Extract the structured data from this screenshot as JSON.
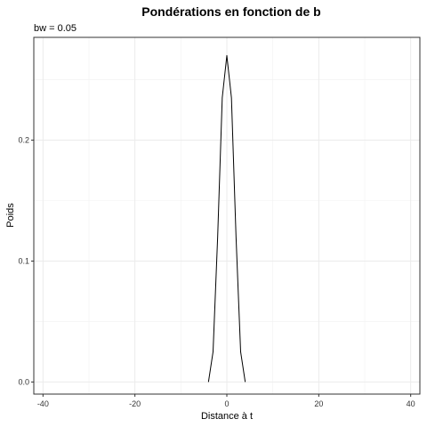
{
  "chart_data": {
    "type": "line",
    "title": "Pondérations en fonction de b",
    "subtitle": "bw = 0.05",
    "xlabel": "Distance à t",
    "ylabel": "Poids",
    "xlim": [
      -42,
      42
    ],
    "ylim": [
      -0.01,
      0.285
    ],
    "x_ticks": [
      -40,
      -20,
      0,
      20,
      40
    ],
    "x_tick_labels": [
      "-40",
      "-20",
      "0",
      "20",
      "40"
    ],
    "y_ticks": [
      0.0,
      0.1,
      0.2
    ],
    "y_tick_labels": [
      "0.0",
      "0.1",
      "0.2"
    ],
    "grid": true,
    "series": [
      {
        "color": "#000000",
        "x": [
          -4,
          -3,
          -2,
          -1,
          0,
          1,
          2,
          3,
          4
        ],
        "y": [
          0.0,
          0.025,
          0.12,
          0.235,
          0.27,
          0.235,
          0.12,
          0.025,
          0.0
        ]
      }
    ]
  }
}
